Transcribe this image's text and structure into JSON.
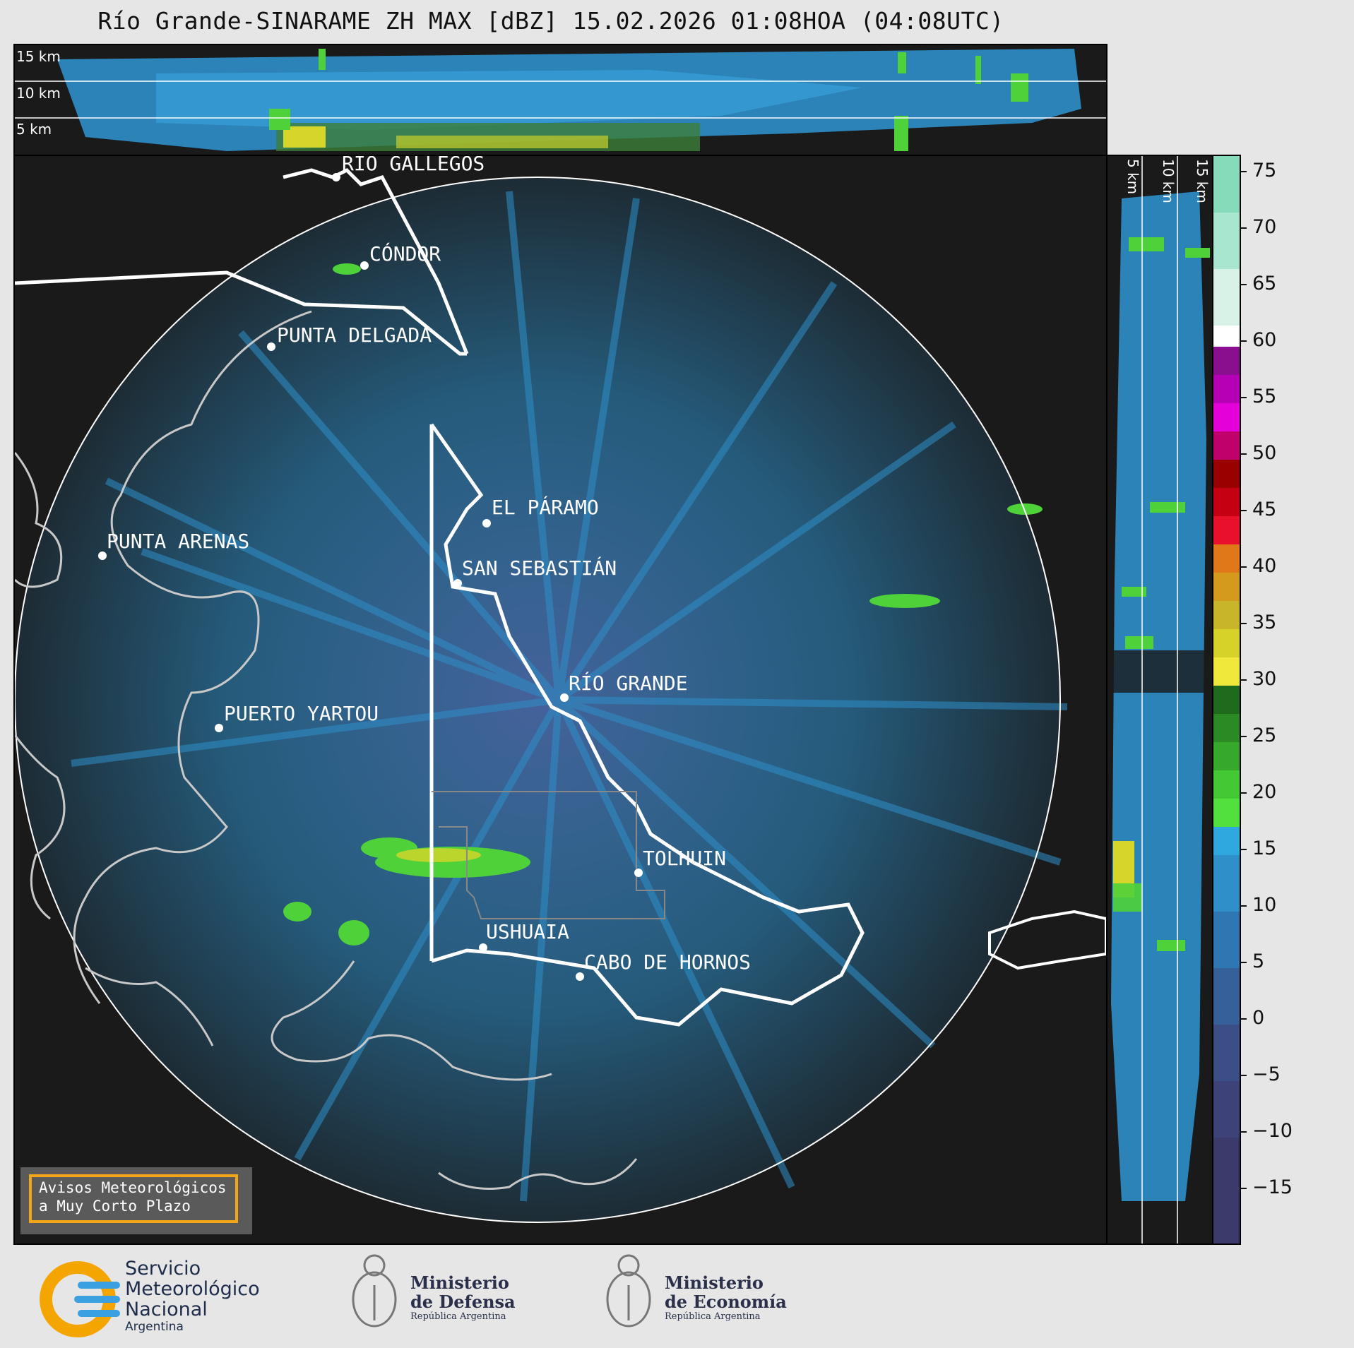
{
  "title": "Río Grande-SINARAME ZH MAX [dBZ] 15.02.2026 01:08HOA (04:08UTC)",
  "height_labels": {
    "h15": "15 km",
    "h10": "10 km",
    "h5": "5 km"
  },
  "colorbar": {
    "ticks": [
      "75",
      "70",
      "65",
      "60",
      "55",
      "50",
      "45",
      "40",
      "35",
      "30",
      "25",
      "20",
      "15",
      "10",
      "5",
      "0",
      "−5",
      "−10",
      "−15"
    ]
  },
  "cities": {
    "rio_gallegos": "RÍO GALLEGOS",
    "condor": "CÓNDOR",
    "punta_delgada": "PUNTA DELGADA",
    "el_paramo": "EL PÁRAMO",
    "punta_arenas": "PUNTA ARENAS",
    "san_sebastian": "SAN SEBASTIÁN",
    "rio_grande": "RÍO GRANDE",
    "puerto_yartou": "PUERTO YARTOU",
    "tolhuin": "TOLHUIN",
    "ushuaia": "USHUAIA",
    "cabo_de_hornos": "CABO DE HORNOS"
  },
  "warning": {
    "line1": "Avisos Meteorológicos",
    "line2": "a Muy Corto Plazo"
  },
  "logos": {
    "smn": {
      "line1": "Servicio",
      "line2": "Meteorológico",
      "line3": "Nacional",
      "line4": "Argentina"
    },
    "defensa": {
      "line1": "Ministerio",
      "line2": "de Defensa",
      "line3": "República Argentina"
    },
    "economia": {
      "line1": "Ministerio",
      "line2": "de Economía",
      "line3": "República Argentina"
    }
  },
  "colors": {
    "background": "#1a1a1a",
    "echo_blue": "#2e8fc9",
    "echo_green": "#4fd13a",
    "coast": "#c8c8c8",
    "border": "#ffffff",
    "warn_border": "#f2a516"
  }
}
